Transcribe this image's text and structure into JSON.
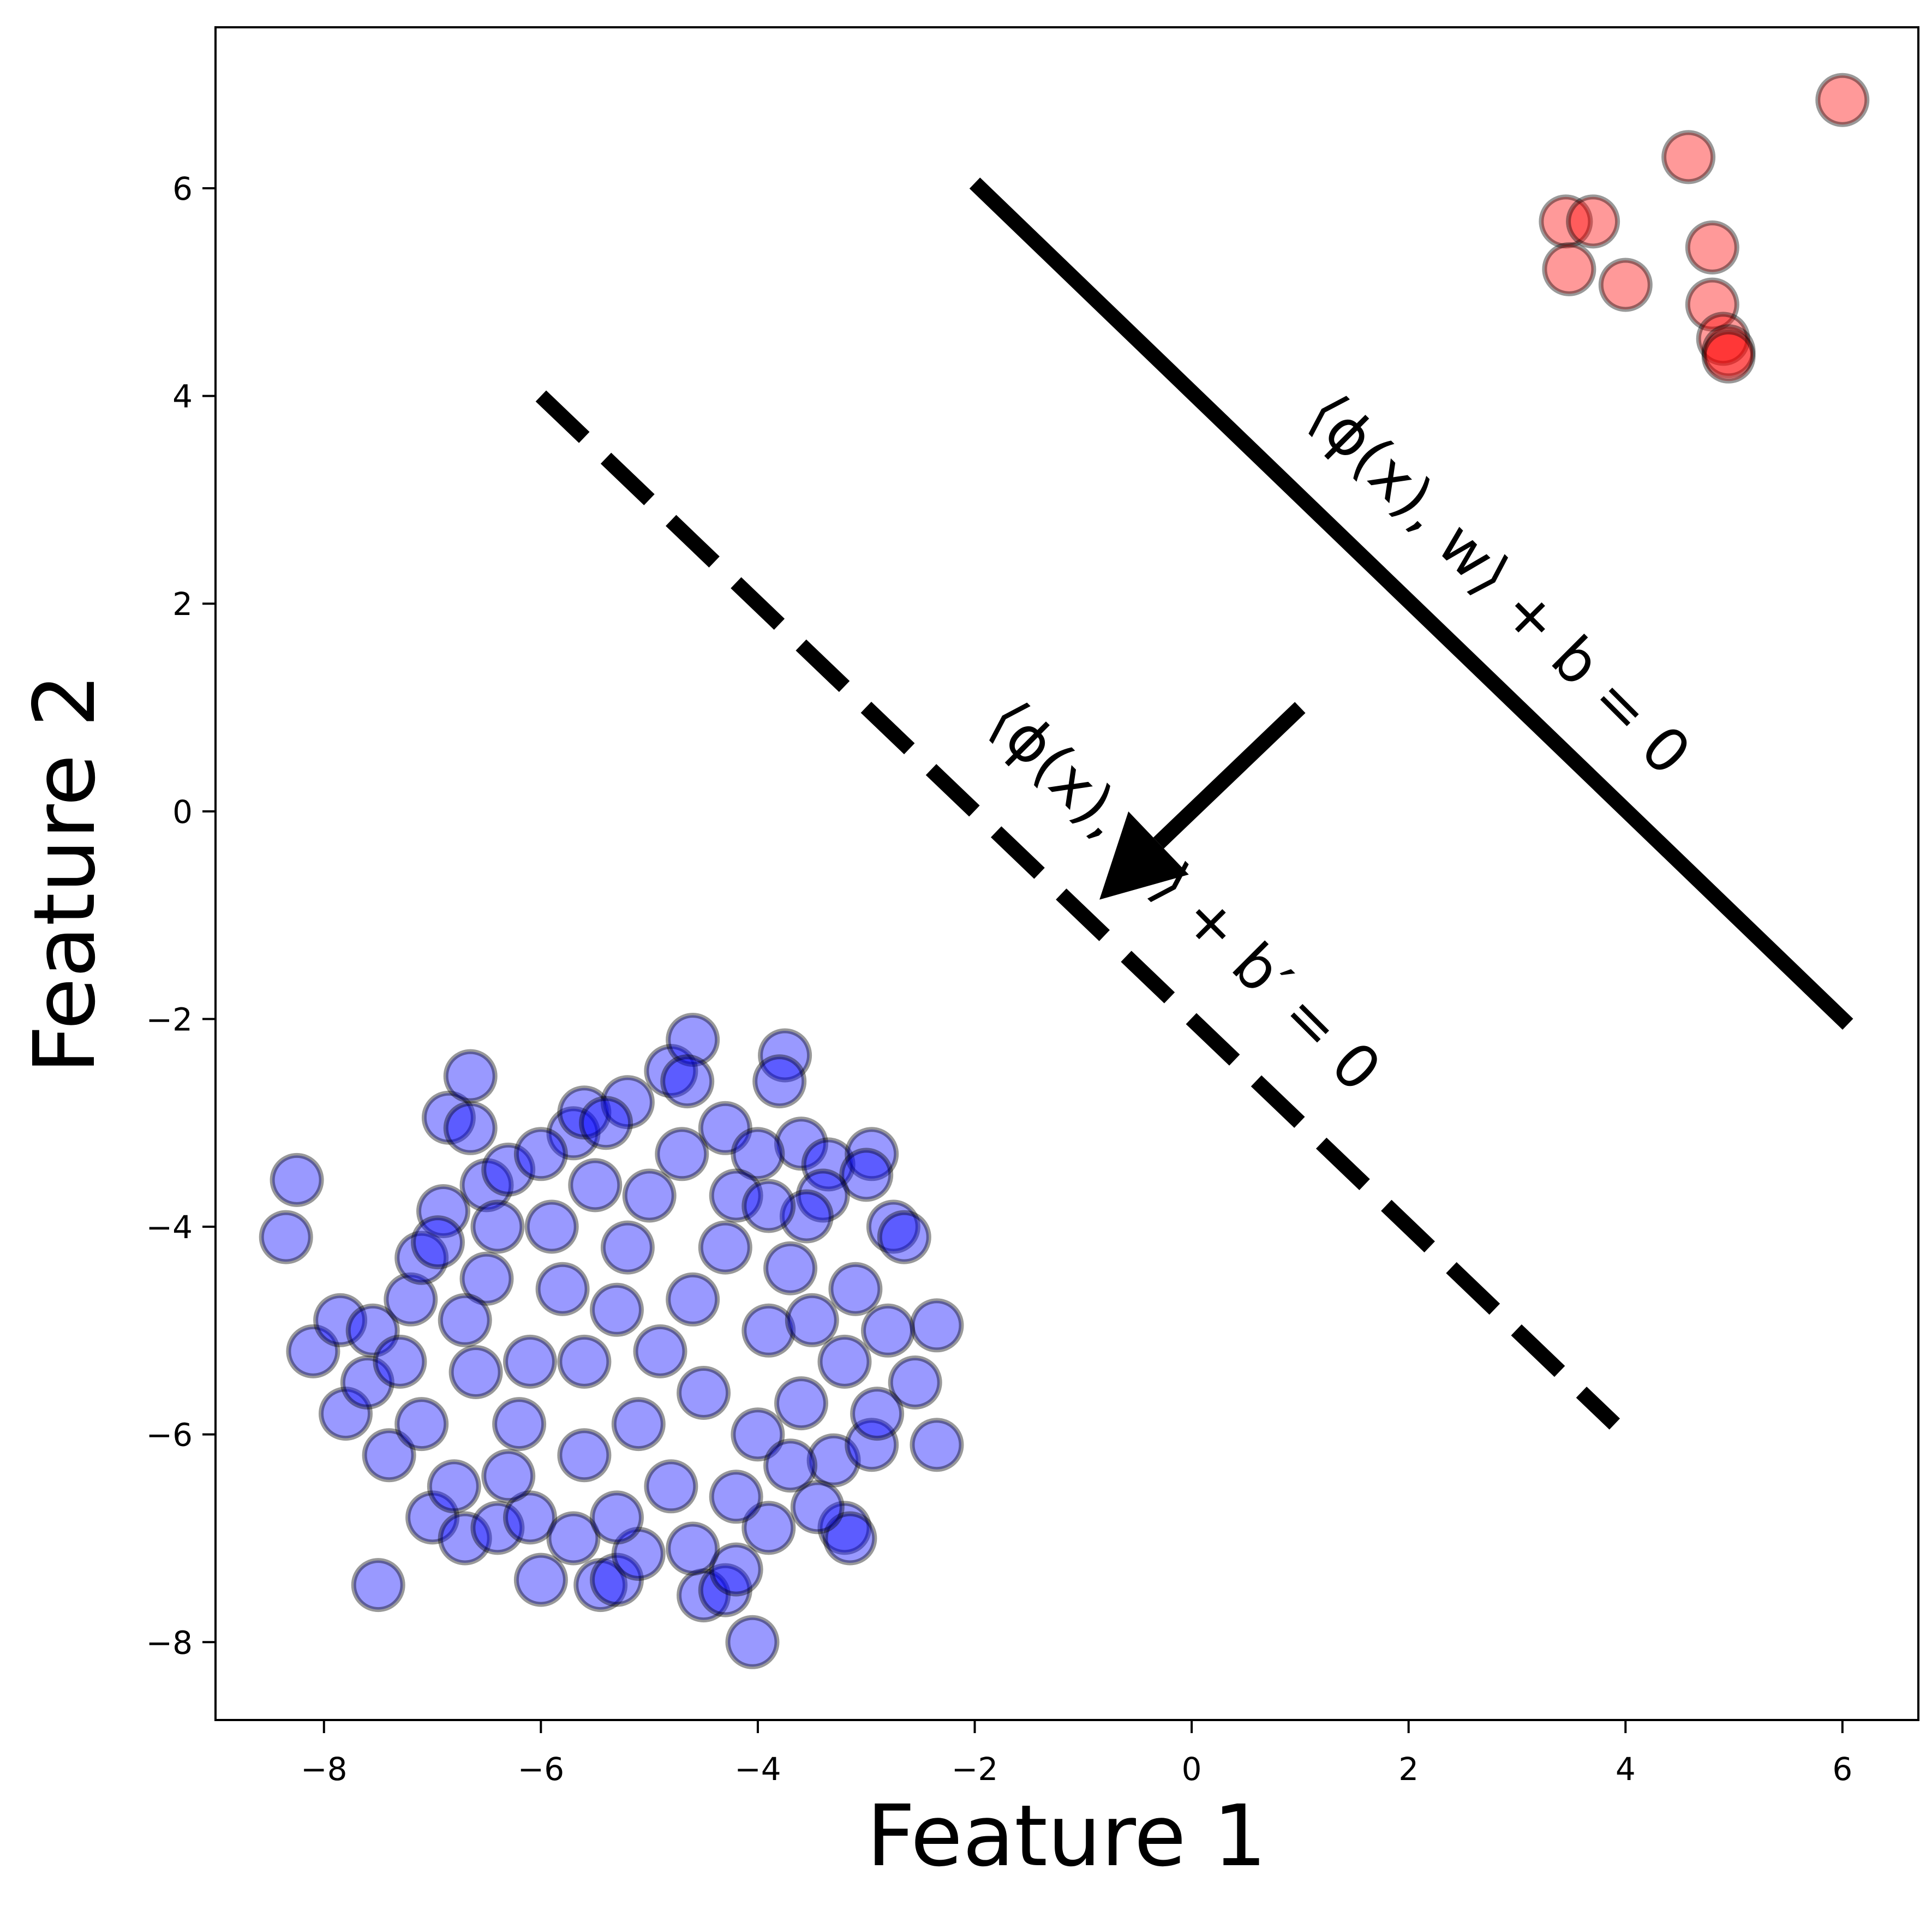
{
  "chart_data": {
    "type": "scatter",
    "title": "",
    "xlabel": "Feature 1",
    "ylabel": "Feature 2",
    "xlim": [
      -9.0,
      6.7
    ],
    "ylim": [
      -8.75,
      7.55
    ],
    "grid": false,
    "legend": "none",
    "xticks": [
      -8,
      -6,
      -4,
      -2,
      0,
      2,
      4,
      6
    ],
    "xtick_labels": [
      "−8",
      "−6",
      "−4",
      "−2",
      "0",
      "2",
      "4",
      "6"
    ],
    "yticks": [
      -8,
      -6,
      -4,
      -2,
      0,
      2,
      4,
      6
    ],
    "ytick_labels": [
      "−8",
      "−6",
      "−4",
      "−2",
      "0",
      "2",
      "4",
      "6"
    ],
    "series": [
      {
        "color": "#ff0000",
        "edge_color": "#000000",
        "alpha": 0.4,
        "points": [
          [
            6.0,
            6.85
          ],
          [
            4.58,
            6.3
          ],
          [
            3.45,
            5.68
          ],
          [
            3.7,
            5.68
          ],
          [
            3.48,
            5.22
          ],
          [
            4.0,
            5.07
          ],
          [
            4.8,
            5.43
          ],
          [
            4.8,
            4.88
          ],
          [
            4.9,
            4.55
          ],
          [
            4.95,
            4.43
          ],
          [
            4.95,
            4.38
          ]
        ]
      },
      {
        "color": "#0000ff",
        "edge_color": "#000000",
        "alpha": 0.4,
        "points": [
          [
            -8.25,
            -3.55
          ],
          [
            -8.35,
            -4.1
          ],
          [
            -8.1,
            -5.2
          ],
          [
            -7.85,
            -4.9
          ],
          [
            -7.8,
            -5.8
          ],
          [
            -7.5,
            -7.45
          ],
          [
            -7.55,
            -5.0
          ],
          [
            -7.6,
            -5.5
          ],
          [
            -7.4,
            -6.2
          ],
          [
            -7.3,
            -5.3
          ],
          [
            -7.2,
            -4.7
          ],
          [
            -7.1,
            -4.3
          ],
          [
            -7.0,
            -6.8
          ],
          [
            -6.9,
            -3.85
          ],
          [
            -6.85,
            -2.95
          ],
          [
            -6.65,
            -2.55
          ],
          [
            -6.65,
            -3.05
          ],
          [
            -6.7,
            -7.0
          ],
          [
            -6.5,
            -3.6
          ],
          [
            -6.4,
            -6.9
          ],
          [
            -6.0,
            -7.4
          ],
          [
            -6.1,
            -6.8
          ],
          [
            -5.7,
            -3.1
          ],
          [
            -5.6,
            -2.9
          ],
          [
            -5.45,
            -7.45
          ],
          [
            -5.3,
            -7.4
          ],
          [
            -5.2,
            -2.8
          ],
          [
            -4.8,
            -2.5
          ],
          [
            -4.6,
            -2.2
          ],
          [
            -4.65,
            -2.6
          ],
          [
            -4.5,
            -7.55
          ],
          [
            -4.3,
            -7.5
          ],
          [
            -4.2,
            -7.3
          ],
          [
            -4.05,
            -8.0
          ],
          [
            -3.9,
            -6.9
          ],
          [
            -3.75,
            -2.35
          ],
          [
            -3.8,
            -2.6
          ],
          [
            -3.6,
            -3.2
          ],
          [
            -3.35,
            -3.4
          ],
          [
            -3.3,
            -6.25
          ],
          [
            -3.2,
            -6.9
          ],
          [
            -3.15,
            -7.0
          ],
          [
            -2.95,
            -3.3
          ],
          [
            -3.0,
            -3.5
          ],
          [
            -2.75,
            -4.0
          ],
          [
            -2.65,
            -4.1
          ],
          [
            -2.55,
            -5.5
          ],
          [
            -2.35,
            -4.95
          ],
          [
            -2.35,
            -6.1
          ],
          [
            -2.95,
            -6.1
          ],
          [
            -2.8,
            -5.0
          ],
          [
            -2.9,
            -5.8
          ],
          [
            -3.1,
            -4.6
          ],
          [
            -3.4,
            -3.7
          ],
          [
            -6.8,
            -6.5
          ],
          [
            -7.1,
            -5.9
          ],
          [
            -6.95,
            -4.15
          ],
          [
            -6.3,
            -3.45
          ],
          [
            -6.0,
            -3.3
          ],
          [
            -5.4,
            -3.0
          ],
          [
            -4.3,
            -3.05
          ],
          [
            -4.0,
            -3.3
          ],
          [
            -3.55,
            -3.9
          ],
          [
            -3.2,
            -5.3
          ],
          [
            -3.45,
            -6.7
          ],
          [
            -4.6,
            -7.1
          ],
          [
            -5.1,
            -7.15
          ],
          [
            -5.7,
            -7.0
          ],
          [
            -6.3,
            -6.4
          ],
          [
            -6.6,
            -5.4
          ],
          [
            -6.5,
            -4.5
          ],
          [
            -5.9,
            -4.0
          ],
          [
            -5.0,
            -3.7
          ],
          [
            -4.3,
            -4.2
          ],
          [
            -3.9,
            -5.0
          ],
          [
            -4.0,
            -6.0
          ],
          [
            -4.8,
            -6.5
          ],
          [
            -5.6,
            -6.2
          ],
          [
            -6.1,
            -5.3
          ],
          [
            -5.8,
            -4.6
          ],
          [
            -5.2,
            -4.2
          ],
          [
            -4.6,
            -4.7
          ],
          [
            -4.5,
            -5.6
          ],
          [
            -5.1,
            -5.9
          ],
          [
            -5.6,
            -5.3
          ],
          [
            -5.3,
            -4.8
          ],
          [
            -4.9,
            -5.2
          ],
          [
            -4.2,
            -3.7
          ],
          [
            -3.7,
            -4.4
          ],
          [
            -3.6,
            -5.7
          ],
          [
            -4.2,
            -6.6
          ],
          [
            -5.3,
            -6.8
          ],
          [
            -6.2,
            -5.9
          ],
          [
            -6.7,
            -4.9
          ],
          [
            -6.4,
            -4.0
          ],
          [
            -5.5,
            -3.6
          ],
          [
            -4.7,
            -3.3
          ],
          [
            -3.9,
            -3.8
          ],
          [
            -3.5,
            -4.9
          ],
          [
            -3.7,
            -6.3
          ]
        ]
      }
    ],
    "lines": [
      {
        "style": "solid",
        "from": [
          -2.0,
          6.05
        ],
        "to": [
          6.05,
          -2.05
        ],
        "label": "⟨ϕ(x), w⟩ + b = 0"
      },
      {
        "style": "dashed",
        "from": [
          -6.0,
          4.0
        ],
        "to": [
          3.9,
          -5.9
        ],
        "label": "⟨ϕ(x), w⟩ + b′ = 0"
      }
    ],
    "arrow": {
      "from": [
        1.0,
        1.0
      ],
      "to": [
        -0.85,
        -0.85
      ]
    }
  }
}
